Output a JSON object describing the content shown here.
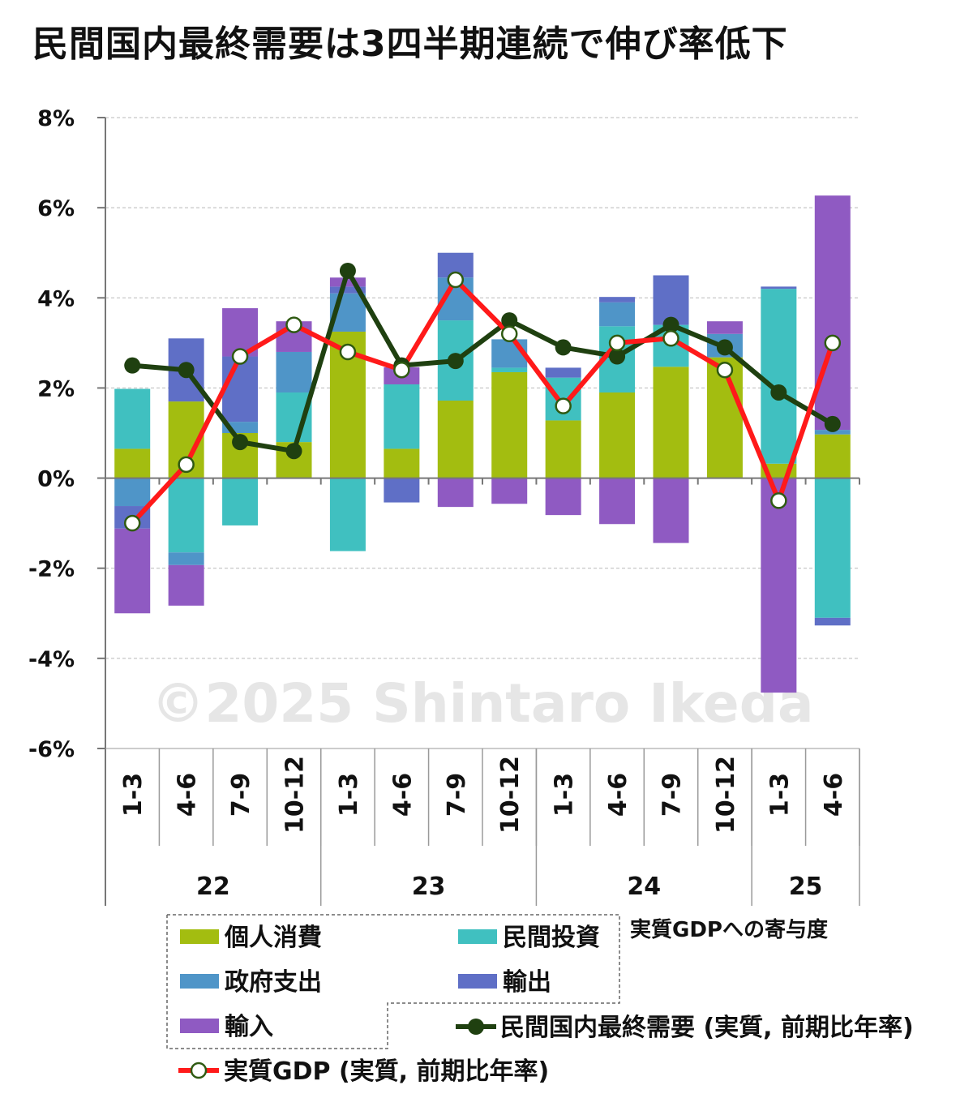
{
  "chart_data": {
    "type": "bar",
    "title": "民間国内最終需要は3四半期連続で伸び率低下",
    "y_ticks": [
      "8%",
      "6%",
      "4%",
      "2%",
      "0%",
      "-2%",
      "-4%",
      "-6%"
    ],
    "ylim": [
      -6,
      8
    ],
    "grid": true,
    "categories": [
      "1-3",
      "4-6",
      "7-9",
      "10-12",
      "1-3",
      "4-6",
      "7-9",
      "10-12",
      "1-3",
      "4-6",
      "7-9",
      "10-12",
      "1-3",
      "4-6"
    ],
    "years": [
      {
        "label": "22",
        "span": 4
      },
      {
        "label": "23",
        "span": 4
      },
      {
        "label": "24",
        "span": 4
      },
      {
        "label": "25",
        "span": 2
      }
    ],
    "stack_note": "実質GDPへの寄与度",
    "series": [
      {
        "name": "個人消費",
        "color": "#a3bd10",
        "values": [
          0.65,
          1.7,
          1.0,
          0.8,
          3.25,
          0.65,
          1.72,
          2.35,
          1.28,
          1.9,
          2.47,
          2.68,
          0.32,
          0.97
        ]
      },
      {
        "name": "民間投資",
        "color": "#40c0c0",
        "values": [
          1.33,
          -1.65,
          -1.05,
          1.1,
          -1.62,
          1.43,
          1.78,
          0.1,
          0.95,
          1.47,
          0.93,
          0.0,
          3.88,
          -3.1
        ]
      },
      {
        "name": "政府支出",
        "color": "#4f95c8",
        "values": [
          -0.62,
          -0.28,
          0.25,
          0.9,
          0.85,
          0.0,
          0.95,
          0.63,
          0.0,
          0.53,
          0.0,
          0.52,
          0.0,
          0.1
        ]
      },
      {
        "name": "輸出",
        "color": "#5f6fc6",
        "values": [
          -0.5,
          1.4,
          1.45,
          0.0,
          0.15,
          -0.54,
          0.55,
          0.0,
          0.22,
          0.12,
          1.1,
          0.0,
          0.05,
          -0.17
        ]
      },
      {
        "name": "輸入",
        "color": "#8f5ac2",
        "values": [
          -1.88,
          -0.9,
          1.07,
          0.68,
          0.2,
          0.38,
          -0.64,
          -0.57,
          -0.82,
          -1.02,
          -1.44,
          0.28,
          -4.76,
          5.2
        ]
      }
    ],
    "lines": [
      {
        "name": "民間国内最終需要 (実質, 前期比年率)",
        "color": "#1f4010",
        "marker": "filled",
        "values": [
          2.5,
          2.4,
          0.8,
          0.6,
          4.6,
          2.5,
          2.6,
          3.5,
          2.9,
          2.7,
          3.4,
          2.9,
          1.9,
          1.2
        ]
      },
      {
        "name": "実質GDP (実質, 前期比年率)",
        "color": "#ff1a1a",
        "marker": "hollow",
        "values": [
          -1.0,
          0.3,
          2.7,
          3.4,
          2.8,
          2.4,
          4.4,
          3.2,
          1.6,
          3.0,
          3.1,
          2.4,
          -0.5,
          3.0
        ]
      }
    ]
  },
  "watermark": "©2025 Shintaro Ikeda"
}
